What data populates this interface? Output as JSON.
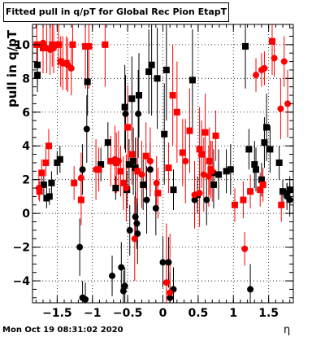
{
  "chart_data": {
    "type": "scatter",
    "title": "Fitted pull in q/pT for Global Rec Pion EtapT",
    "xlabel": "η",
    "ylabel": "pull in q/pT",
    "xlim": [
      -1.85,
      1.85
    ],
    "ylim": [
      -5.3,
      11.2
    ],
    "xticks": [
      -1.5,
      -1,
      -0.5,
      0,
      0.5,
      1,
      1.5
    ],
    "xtick_labels": [
      "−1.5",
      "−1",
      "−0.5",
      "0",
      "0.5",
      "1",
      "1.5"
    ],
    "yticks": [
      -4,
      -2,
      0,
      2,
      4,
      6,
      8,
      10
    ],
    "ytick_labels": [
      "−4",
      "−2",
      "0",
      "2",
      "4",
      "6",
      "8",
      "10"
    ],
    "grid": true,
    "legend": "none",
    "colors": {
      "black_series": "#000000",
      "red_series": "#ff0000",
      "frame": "#000000",
      "grid": "#000000"
    },
    "series": [
      {
        "color": "#000000",
        "marker": "square",
        "points": [
          [
            -1.78,
            8.8,
            1.2
          ],
          [
            -1.78,
            8.2,
            1.0
          ],
          [
            -1.69,
            1.7,
            0.6
          ],
          [
            -1.65,
            0.9,
            0.6
          ],
          [
            -1.61,
            1.0,
            0.5
          ],
          [
            -1.58,
            1.8,
            0.7
          ],
          [
            -1.5,
            3.0,
            0.7
          ],
          [
            -1.46,
            3.2,
            0.8
          ],
          [
            -1.07,
            7.8,
            2.0
          ],
          [
            -0.88,
            2.9,
            1.0
          ],
          [
            -0.78,
            4.2,
            1.2
          ],
          [
            -0.67,
            1.5,
            0.7
          ],
          [
            -0.54,
            6.3,
            2.5
          ],
          [
            -0.51,
            1.4,
            1.1
          ],
          [
            -0.48,
            2.9,
            1.5
          ],
          [
            -0.44,
            6.8,
            2.5
          ],
          [
            -0.42,
            3.1,
            2.0
          ],
          [
            -0.39,
            2.7,
            1.8
          ],
          [
            -0.34,
            7.0,
            2.5
          ],
          [
            -0.28,
            1.7,
            1.5
          ],
          [
            -0.2,
            8.4,
            2.5
          ],
          [
            -0.16,
            8.8,
            3.0
          ],
          [
            -0.08,
            8.0,
            3.0
          ],
          [
            0.02,
            4.7,
            3.0
          ],
          [
            0.05,
            8.5,
            3.0
          ],
          [
            0.15,
            1.4,
            1.2
          ],
          [
            0.42,
            7.9,
            3.0
          ],
          [
            0.49,
            1.1,
            1.1
          ],
          [
            0.72,
            1.7,
            1.4
          ],
          [
            0.79,
            2.3,
            1.5
          ],
          [
            0.9,
            2.5,
            1.3
          ],
          [
            0.96,
            2.6,
            1.5
          ],
          [
            1.17,
            9.9,
            2.5
          ],
          [
            1.22,
            3.8,
            1.2
          ],
          [
            1.3,
            2.9,
            1.4
          ],
          [
            1.32,
            2.6,
            1.3
          ],
          [
            1.4,
            2.0,
            1.0
          ],
          [
            1.44,
            4.2,
            1.5
          ],
          [
            1.47,
            5.1,
            2.0
          ],
          [
            1.52,
            3.8,
            1.4
          ],
          [
            1.65,
            3.0,
            1.0
          ],
          [
            1.7,
            1.3,
            0.7
          ],
          [
            1.76,
            1.2,
            0.6
          ],
          [
            1.8,
            1.4,
            0.8
          ]
        ]
      },
      {
        "color": "#000000",
        "marker": "circle",
        "points": [
          [
            -1.18,
            -2.0,
            1.7
          ],
          [
            -1.14,
            -5.0,
            1.0
          ],
          [
            -1.1,
            -5.1,
            1.0
          ],
          [
            -1.08,
            5.0,
            2.0
          ],
          [
            -1.14,
            2.6,
            1.5
          ],
          [
            -0.72,
            -3.7,
            1.2
          ],
          [
            -0.59,
            -3.2,
            1.5
          ],
          [
            -0.56,
            -4.6,
            1.2
          ],
          [
            -0.54,
            -4.3,
            1.1
          ],
          [
            -0.53,
            5.9,
            2.3
          ],
          [
            -0.47,
            -1.0,
            1.5
          ],
          [
            -0.39,
            -0.2,
            1.5
          ],
          [
            -0.37,
            -0.6,
            1.5
          ],
          [
            -0.36,
            -1.2,
            1.8
          ],
          [
            -0.35,
            5.9,
            2.6
          ],
          [
            -0.23,
            0.8,
            2.0
          ],
          [
            -0.18,
            2.6,
            1.6
          ],
          [
            -0.1,
            0.3,
            1.6
          ],
          [
            0.0,
            -2.9,
            1.5
          ],
          [
            0.08,
            -2.9,
            1.5
          ],
          [
            0.1,
            -5.0,
            1.5
          ],
          [
            0.15,
            -4.5,
            1.3
          ],
          [
            0.45,
            0.8,
            1.5
          ],
          [
            0.62,
            0.8,
            1.5
          ],
          [
            0.72,
            2.4,
            1.4
          ],
          [
            1.24,
            -4.5,
            1.5
          ],
          [
            1.8,
            0.8,
            1.0
          ],
          [
            1.76,
            1.0,
            0.8
          ]
        ]
      },
      {
        "color": "#ff0000",
        "marker": "square",
        "points": [
          [
            -1.79,
            10.0,
            1.3
          ],
          [
            -1.75,
            1.3,
            0.6
          ],
          [
            -1.72,
            2.4,
            0.8
          ],
          [
            -1.7,
            9.8,
            1.5
          ],
          [
            -1.66,
            3.0,
            0.8
          ],
          [
            -1.62,
            4.0,
            1.0
          ],
          [
            -1.57,
            10.0,
            1.3
          ],
          [
            -1.48,
            10.0,
            1.4
          ],
          [
            -1.45,
            9.0,
            1.5
          ],
          [
            -1.37,
            8.9,
            1.6
          ],
          [
            -1.28,
            10.0,
            1.5
          ],
          [
            -1.26,
            1.8,
            1.0
          ],
          [
            -1.16,
            0.8,
            1.5
          ],
          [
            -1.1,
            9.9,
            2.5
          ],
          [
            -1.05,
            9.9,
            2.5
          ],
          [
            -0.91,
            2.6,
            1.3
          ],
          [
            -0.82,
            10.0,
            2.5
          ],
          [
            -0.74,
            3.1,
            1.5
          ],
          [
            -0.66,
            3.0,
            1.8
          ],
          [
            -0.6,
            2.5,
            1.5
          ],
          [
            -0.56,
            1.8,
            1.6
          ],
          [
            -0.5,
            5.1,
            2.5
          ],
          [
            -0.44,
            3.5,
            1.8
          ],
          [
            -0.36,
            2.5,
            2.0
          ],
          [
            -0.24,
            3.4,
            2.0
          ],
          [
            -0.07,
            1.2,
            1.5
          ],
          [
            0.08,
            2.7,
            1.5
          ],
          [
            0.14,
            7.0,
            3.0
          ],
          [
            0.2,
            6.0,
            3.0
          ],
          [
            0.28,
            3.6,
            2.0
          ],
          [
            0.38,
            4.9,
            2.5
          ],
          [
            0.52,
            3.8,
            2.5
          ],
          [
            0.55,
            3.5,
            2.0
          ],
          [
            0.6,
            4.8,
            2.3
          ],
          [
            0.66,
            3.1,
            2.0
          ],
          [
            0.68,
            2.6,
            1.7
          ],
          [
            0.75,
            4.6,
            1.5
          ],
          [
            1.02,
            0.5,
            1.0
          ],
          [
            1.14,
            0.8,
            1.1
          ],
          [
            1.24,
            1.3,
            1.0
          ],
          [
            1.38,
            1.4,
            1.0
          ],
          [
            1.42,
            1.7,
            1.0
          ],
          [
            1.55,
            10.2,
            2.0
          ],
          [
            1.68,
            0.5,
            1.0
          ]
        ]
      },
      {
        "color": "#ff0000",
        "marker": "circle",
        "points": [
          [
            -1.76,
            1.5,
            0.7
          ],
          [
            -1.7,
            10.1,
            1.5
          ],
          [
            -1.65,
            9.8,
            1.5
          ],
          [
            -1.6,
            9.7,
            1.5
          ],
          [
            -1.55,
            9.8,
            1.5
          ],
          [
            -1.42,
            8.9,
            1.6
          ],
          [
            -1.35,
            8.8,
            1.6
          ],
          [
            -1.3,
            8.6,
            1.6
          ],
          [
            -1.16,
            2.1,
            1.5
          ],
          [
            -0.95,
            2.6,
            1.8
          ],
          [
            -0.68,
            3.2,
            2.0
          ],
          [
            -0.63,
            3.1,
            1.8
          ],
          [
            -0.52,
            1.5,
            2.0
          ],
          [
            -0.4,
            -1.5,
            2.5
          ],
          [
            -0.3,
            2.3,
            2.0
          ],
          [
            -0.18,
            3.1,
            2.0
          ],
          [
            -0.09,
            1.8,
            1.6
          ],
          [
            0.05,
            -4.1,
            3.5
          ],
          [
            0.1,
            -4.7,
            3.5
          ],
          [
            0.32,
            3.1,
            2.5
          ],
          [
            0.45,
            1.1,
            2.0
          ],
          [
            0.52,
            1.2,
            2.0
          ],
          [
            0.58,
            2.3,
            2.2
          ],
          [
            0.65,
            2.2,
            1.8
          ],
          [
            0.7,
            2.5,
            1.8
          ],
          [
            1.16,
            -2.1,
            1.0
          ],
          [
            1.32,
            8.2,
            1.0
          ],
          [
            1.4,
            8.5,
            1.0
          ],
          [
            1.44,
            8.6,
            1.0
          ],
          [
            1.58,
            9.2,
            1.1
          ],
          [
            1.67,
            6.2,
            1.8
          ],
          [
            1.72,
            9.0,
            1.5
          ],
          [
            1.77,
            6.5,
            2.0
          ]
        ]
      }
    ]
  },
  "footer": {
    "datestamp": "Mon Oct 19 08:31:02 2020"
  }
}
